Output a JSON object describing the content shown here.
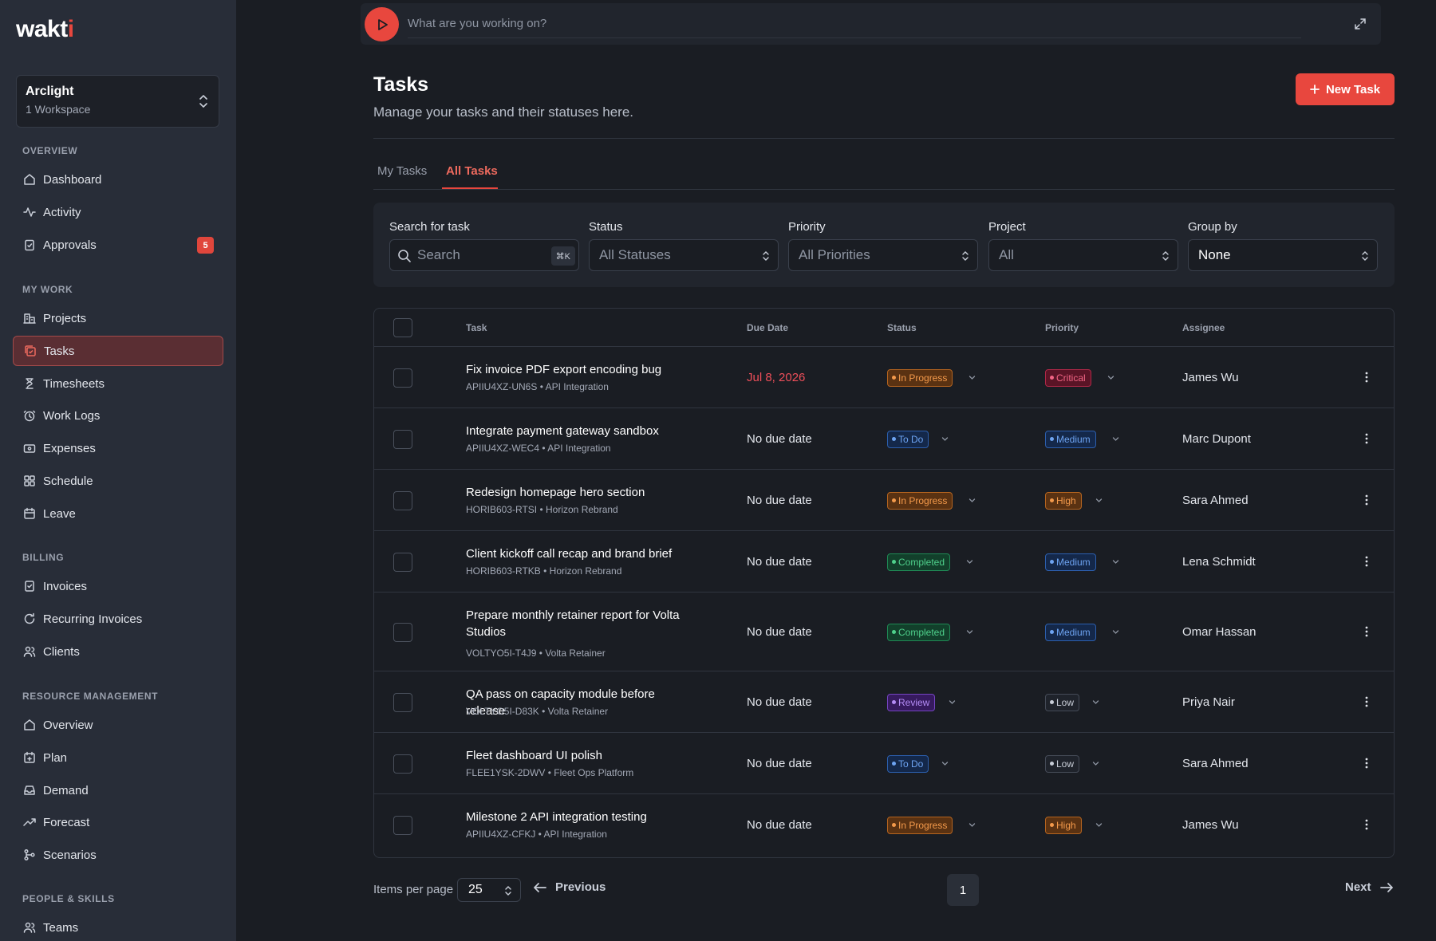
{
  "app": {
    "logo": "wakti"
  },
  "workspace": {
    "name": "Arclight",
    "sub": "1 Workspace"
  },
  "sidebar": {
    "sections": [
      {
        "title": "OVERVIEW",
        "items": [
          {
            "label": "Dashboard",
            "icon": "home-icon"
          },
          {
            "label": "Activity",
            "icon": "activity-icon"
          },
          {
            "label": "Approvals",
            "icon": "clipboard-check-icon",
            "badge": "5"
          }
        ]
      },
      {
        "title": "MY WORK",
        "items": [
          {
            "label": "Projects",
            "icon": "building-icon"
          },
          {
            "label": "Tasks",
            "icon": "tasks-icon",
            "active": true
          },
          {
            "label": "Timesheets",
            "icon": "hourglass-icon"
          },
          {
            "label": "Work Logs",
            "icon": "clock-icon"
          },
          {
            "label": "Expenses",
            "icon": "wallet-icon"
          },
          {
            "label": "Schedule",
            "icon": "grid-icon"
          },
          {
            "label": "Leave",
            "icon": "calendar-icon"
          }
        ]
      },
      {
        "title": "BILLING",
        "items": [
          {
            "label": "Invoices",
            "icon": "invoice-icon"
          },
          {
            "label": "Recurring Invoices",
            "icon": "refresh-icon"
          },
          {
            "label": "Clients",
            "icon": "users-icon"
          }
        ]
      },
      {
        "title": "RESOURCE MANAGEMENT",
        "items": [
          {
            "label": "Overview",
            "icon": "home-icon"
          },
          {
            "label": "Plan",
            "icon": "calendar-plus-icon"
          },
          {
            "label": "Demand",
            "icon": "inbox-icon"
          },
          {
            "label": "Forecast",
            "icon": "trending-up-icon"
          },
          {
            "label": "Scenarios",
            "icon": "branch-icon"
          }
        ]
      },
      {
        "title": "PEOPLE & SKILLS",
        "items": [
          {
            "label": "Teams",
            "icon": "users-icon"
          }
        ]
      }
    ]
  },
  "timer": {
    "placeholder": "What are you working on?"
  },
  "header": {
    "title": "Tasks",
    "subtitle": "Manage your tasks and their statuses here.",
    "new_task_label": "New Task"
  },
  "tabs": [
    {
      "label": "My Tasks"
    },
    {
      "label": "All Tasks",
      "active": true
    }
  ],
  "filters": {
    "search": {
      "label": "Search for task",
      "placeholder": "Search",
      "shortcut": "⌘K"
    },
    "status": {
      "label": "Status",
      "value": "All Statuses"
    },
    "priority": {
      "label": "Priority",
      "value": "All Priorities"
    },
    "project": {
      "label": "Project",
      "value": "All"
    },
    "group_by": {
      "label": "Group by",
      "value": "None"
    }
  },
  "table": {
    "columns": {
      "task": "Task",
      "due": "Due Date",
      "status": "Status",
      "priority": "Priority",
      "assignee": "Assignee"
    },
    "rows": [
      {
        "title": "Fix invoice PDF export encoding bug",
        "meta": "APIIU4XZ-UN6S • API Integration",
        "due": "Jul 8, 2026",
        "overdue": true,
        "status": "In Progress",
        "priority": "Critical",
        "assignee": "James Wu"
      },
      {
        "title": "Integrate payment gateway sandbox",
        "meta": "APIIU4XZ-WEC4 • API Integration",
        "due": "No due date",
        "status": "To Do",
        "priority": "Medium",
        "assignee": "Marc Dupont"
      },
      {
        "title": "Redesign homepage hero section",
        "meta": "HORIB603-RTSI • Horizon Rebrand",
        "due": "No due date",
        "status": "In Progress",
        "priority": "High",
        "assignee": "Sara Ahmed"
      },
      {
        "title": "Client kickoff call recap and brand brief",
        "meta": "HORIB603-RTKB • Horizon Rebrand",
        "due": "No due date",
        "status": "Completed",
        "priority": "Medium",
        "assignee": "Lena Schmidt"
      },
      {
        "title": "Prepare monthly retainer report for Volta Studios",
        "meta": "VOLTYO5I-T4J9 • Volta Retainer",
        "due": "No due date",
        "status": "Completed",
        "priority": "Medium",
        "assignee": "Omar Hassan"
      },
      {
        "title": "QA pass on capacity module before release",
        "meta": "VOLTYO5I-D83K • Volta Retainer",
        "due": "No due date",
        "status": "Review",
        "priority": "Low",
        "assignee": "Priya Nair"
      },
      {
        "title": "Fleet dashboard UI polish",
        "meta": "FLEE1YSK-2DWV • Fleet Ops Platform",
        "due": "No due date",
        "status": "To Do",
        "priority": "Low",
        "assignee": "Sara Ahmed"
      },
      {
        "title": "Milestone 2 API integration testing",
        "meta": "APIIU4XZ-CFKJ • API Integration",
        "due": "No due date",
        "status": "In Progress",
        "priority": "High",
        "assignee": "James Wu"
      }
    ]
  },
  "pagination": {
    "items_per_page_label": "Items per page",
    "items_per_page": "25",
    "previous": "Previous",
    "next": "Next",
    "current_page": "1"
  },
  "colors": {
    "accent": "#e8473e",
    "status": {
      "In Progress": {
        "bg": "#5a3212",
        "border": "#b5641f",
        "text": "#f49a4b",
        "dot": "#f49a4b"
      },
      "To Do": {
        "bg": "#14284a",
        "border": "#2c5fae",
        "text": "#6ea4f2",
        "dot": "#6ea4f2"
      },
      "Completed": {
        "bg": "#12402b",
        "border": "#1f8a55",
        "text": "#4fd18c",
        "dot": "#4fd18c"
      },
      "Review": {
        "bg": "#361a5e",
        "border": "#7544c2",
        "text": "#b48cf5",
        "dot": "#b48cf5"
      }
    },
    "priority": {
      "Critical": {
        "bg": "#5a1426",
        "border": "#b02848",
        "text": "#f26585",
        "dot": "#f26585"
      },
      "High": {
        "bg": "#5a3212",
        "border": "#b5641f",
        "text": "#f49a4b",
        "dot": "#f49a4b"
      },
      "Medium": {
        "bg": "#14284a",
        "border": "#2c5fae",
        "text": "#6ea4f2",
        "dot": "#6ea4f2"
      },
      "Low": {
        "bg": "#1f232b",
        "border": "#454b57",
        "text": "#c9ced8",
        "dot": "#c9ced8"
      }
    }
  }
}
